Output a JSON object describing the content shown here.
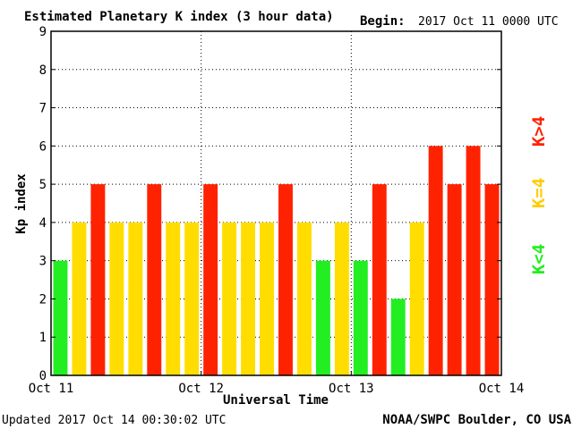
{
  "header": {
    "title": "Estimated Planetary K index (3 hour data)",
    "begin_label": "Begin:",
    "begin_value": "2017 Oct 11 0000 UTC"
  },
  "footer": {
    "updated": "Updated 2017 Oct 14 00:30:02 UTC",
    "source": "NOAA/SWPC Boulder, CO USA"
  },
  "legend": {
    "low": "K<4",
    "mid": "K=4",
    "high": "K>4"
  },
  "colors": {
    "low": "#22ee22",
    "mid": "#ffdd00",
    "high": "#ff2200",
    "legend_mid": "#ffcc00",
    "frame": "#000000",
    "grid": "#000000"
  },
  "chart_data": {
    "type": "bar",
    "title": "Estimated Planetary K index (3 hour data)",
    "xlabel": "Universal Time",
    "ylabel": "Kp index",
    "ylim": [
      0,
      9
    ],
    "yticks": [
      "0",
      "1",
      "2",
      "3",
      "4",
      "5",
      "6",
      "7",
      "8",
      "9"
    ],
    "xticks": [
      "Oct 11",
      "Oct 12",
      "Oct 13",
      "Oct 14"
    ],
    "bars_per_day": 8,
    "values": [
      3,
      4,
      5,
      4,
      4,
      5,
      4,
      4,
      5,
      4,
      4,
      4,
      5,
      4,
      3,
      4,
      3,
      5,
      2,
      4,
      6,
      5,
      6,
      5
    ],
    "grid": true
  }
}
